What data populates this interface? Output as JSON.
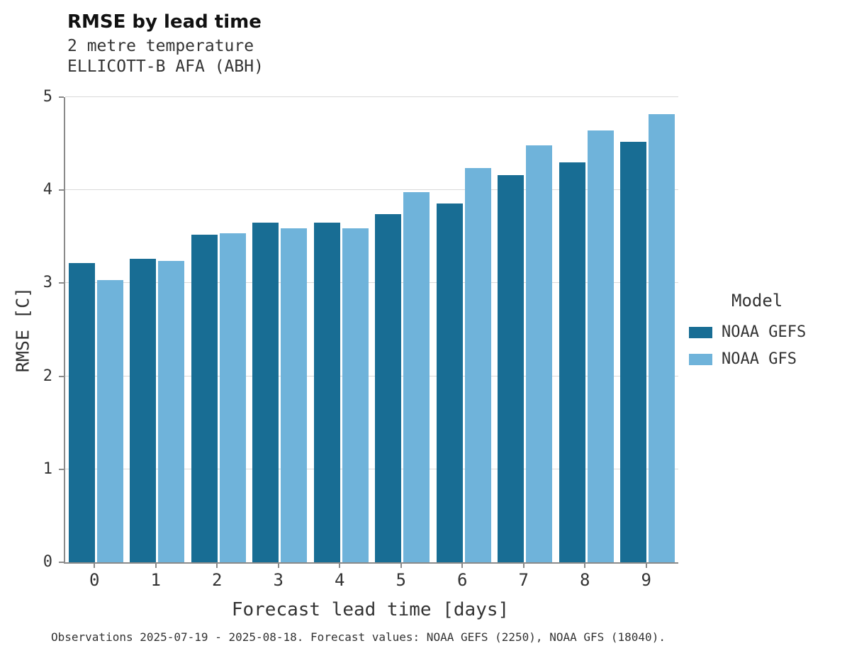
{
  "header": {
    "title": "RMSE by lead time",
    "subtitle1": "2 metre temperature",
    "subtitle2": "ELLICOTT-B AFA (ABH)"
  },
  "legend": {
    "title": "Model",
    "entries": [
      {
        "label": "NOAA GEFS",
        "color": "#186d94"
      },
      {
        "label": "NOAA GFS",
        "color": "#6fb3da"
      }
    ]
  },
  "caption": "Observations 2025-07-19 - 2025-08-18. Forecast values: NOAA GEFS (2250), NOAA GFS (18040).",
  "chart_data": {
    "type": "bar",
    "title": "RMSE by lead time",
    "subtitle": [
      "2 metre temperature",
      "ELLICOTT-B AFA (ABH)"
    ],
    "categories": [
      "0",
      "1",
      "2",
      "3",
      "4",
      "5",
      "6",
      "7",
      "8",
      "9"
    ],
    "series": [
      {
        "name": "NOAA GEFS",
        "color": "#186d94",
        "values": [
          3.22,
          3.26,
          3.52,
          3.65,
          3.65,
          3.74,
          3.86,
          4.16,
          4.3,
          4.52
        ]
      },
      {
        "name": "NOAA GFS",
        "color": "#6fb3da",
        "values": [
          3.03,
          3.24,
          3.54,
          3.59,
          3.59,
          3.98,
          4.24,
          4.48,
          4.64,
          4.82
        ]
      }
    ],
    "xlabel": "Forecast lead time [days]",
    "ylabel": "RMSE [C]",
    "ylim": [
      0,
      5
    ],
    "yticks": [
      0,
      1,
      2,
      3,
      4,
      5
    ],
    "grid": true,
    "legend_position": "right"
  }
}
